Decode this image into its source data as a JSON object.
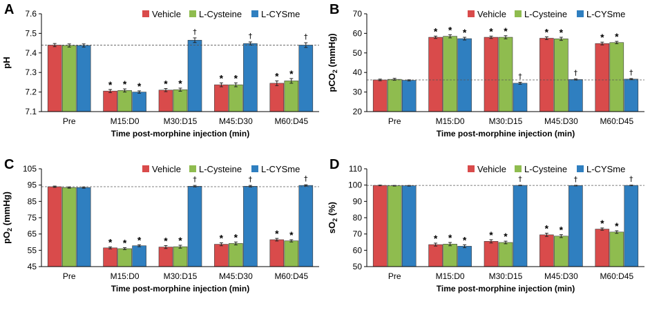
{
  "colors": {
    "Vehicle": "#d94b4b",
    "L-Cysteine": "#8fbc4f",
    "L-CYSme": "#2f7fc0",
    "axis": "#000000",
    "reference": "#555555"
  },
  "chart_data": [
    {
      "panel": "A",
      "type": "bar",
      "ylabel": "pH",
      "ylabel_sub": "",
      "ylabel_suffix": "",
      "xlabel": "Time post-morphine injection (min)",
      "categories": [
        "Pre",
        "M15:D0",
        "M30:D15",
        "M45:D30",
        "M60:D45"
      ],
      "ylim": [
        7.1,
        7.6
      ],
      "yticks": [
        7.1,
        7.2,
        7.3,
        7.4,
        7.5,
        7.6
      ],
      "ytick_labels": [
        "7.1",
        "7.2",
        "7.3",
        "7.4",
        "7.5",
        "7.6"
      ],
      "reference_line": 7.44,
      "series": [
        {
          "name": "Vehicle",
          "values": [
            7.44,
            7.205,
            7.21,
            7.237,
            7.245
          ],
          "errors": [
            0.008,
            0.008,
            0.008,
            0.01,
            0.012
          ],
          "marks": [
            "",
            "*",
            "*",
            "*",
            "*"
          ]
        },
        {
          "name": "L-Cysteine",
          "values": [
            7.438,
            7.208,
            7.212,
            7.237,
            7.257
          ],
          "errors": [
            0.008,
            0.008,
            0.008,
            0.01,
            0.012
          ],
          "marks": [
            "",
            "*",
            "*",
            "*",
            "*"
          ]
        },
        {
          "name": "L-CYSme",
          "values": [
            7.438,
            7.2,
            7.465,
            7.448,
            7.44
          ],
          "errors": [
            0.008,
            0.006,
            0.012,
            0.008,
            0.012
          ],
          "marks": [
            "",
            "*",
            "†",
            "†",
            "†"
          ]
        }
      ]
    },
    {
      "panel": "B",
      "type": "bar",
      "ylabel": "pCO",
      "ylabel_sub": "2",
      "ylabel_suffix": " (mmHg)",
      "xlabel": "Time post-morphine injection (min)",
      "categories": [
        "Pre",
        "M15:D0",
        "M30:D15",
        "M45:D30",
        "M60:D45"
      ],
      "ylim": [
        20,
        70
      ],
      "yticks": [
        20,
        30,
        40,
        50,
        60,
        70
      ],
      "ytick_labels": [
        "20",
        "30",
        "40",
        "50",
        "60",
        "70"
      ],
      "reference_line": 36.2,
      "series": [
        {
          "name": "Vehicle",
          "values": [
            36.2,
            58.0,
            58.0,
            57.5,
            54.8
          ],
          "errors": [
            0.4,
            0.6,
            0.6,
            0.7,
            0.7
          ],
          "marks": [
            "",
            "*",
            "*",
            "*",
            "*"
          ]
        },
        {
          "name": "L-Cysteine",
          "values": [
            36.5,
            58.5,
            58.0,
            57.2,
            55.3
          ],
          "errors": [
            0.5,
            0.8,
            0.8,
            0.8,
            0.6
          ],
          "marks": [
            "",
            "*",
            "*",
            "*",
            "*"
          ]
        },
        {
          "name": "L-CYSme",
          "values": [
            36.0,
            57.3,
            34.5,
            36.4,
            36.6
          ],
          "errors": [
            0.3,
            0.7,
            0.5,
            0.3,
            0.3
          ],
          "marks": [
            "",
            "*",
            "†",
            "†",
            "†"
          ]
        }
      ]
    },
    {
      "panel": "C",
      "type": "bar",
      "ylabel": "pO",
      "ylabel_sub": "2",
      "ylabel_suffix": " (mmHg)",
      "xlabel": "Time post-morphine injection (min)",
      "categories": [
        "Pre",
        "M15:D0",
        "M30:D15",
        "M45:D30",
        "M60:D45"
      ],
      "ylim": [
        45,
        105
      ],
      "yticks": [
        45,
        55,
        65,
        75,
        85,
        95,
        105
      ],
      "ytick_labels": [
        "45",
        "55",
        "65",
        "75",
        "85",
        "95",
        "105"
      ],
      "reference_line": 94,
      "series": [
        {
          "name": "Vehicle",
          "values": [
            94.0,
            56.5,
            57.0,
            58.7,
            61.5
          ],
          "errors": [
            0.4,
            0.6,
            0.9,
            0.9,
            0.8
          ],
          "marks": [
            "",
            "*",
            "*",
            "*",
            "*"
          ]
        },
        {
          "name": "L-Cysteine",
          "values": [
            93.5,
            56.0,
            57.2,
            59.2,
            60.8
          ],
          "errors": [
            0.4,
            0.6,
            0.9,
            0.9,
            0.7
          ],
          "marks": [
            "",
            "*",
            "*",
            "*",
            "*"
          ]
        },
        {
          "name": "L-CYSme",
          "values": [
            93.5,
            57.8,
            94.3,
            94.3,
            94.8
          ],
          "errors": [
            0.4,
            0.6,
            0.5,
            0.5,
            0.4
          ],
          "marks": [
            "",
            "*",
            "†",
            "†",
            "†"
          ]
        }
      ]
    },
    {
      "panel": "D",
      "type": "bar",
      "ylabel": "sO",
      "ylabel_sub": "2",
      "ylabel_suffix": " (%)",
      "xlabel": "Time post-morphine injection (min)",
      "categories": [
        "Pre",
        "M15:D0",
        "M30:D15",
        "M45:D30",
        "M60:D45"
      ],
      "ylim": [
        50,
        110
      ],
      "yticks": [
        50,
        60,
        70,
        80,
        90,
        100,
        110
      ],
      "ytick_labels": [
        "50",
        "60",
        "70",
        "80",
        "90",
        "100",
        "110"
      ],
      "reference_line": 99.8,
      "series": [
        {
          "name": "Vehicle",
          "values": [
            99.8,
            63.5,
            65.5,
            69.5,
            73.0
          ],
          "errors": [
            0.2,
            0.9,
            1.0,
            1.0,
            0.7
          ],
          "marks": [
            "",
            "*",
            "*",
            "*",
            "*"
          ]
        },
        {
          "name": "L-Cysteine",
          "values": [
            99.6,
            63.8,
            64.8,
            68.7,
            71.2
          ],
          "errors": [
            0.2,
            1.0,
            0.8,
            0.9,
            0.8
          ],
          "marks": [
            "",
            "*",
            "*",
            "*",
            "*"
          ]
        },
        {
          "name": "L-CYSme",
          "values": [
            99.6,
            62.5,
            99.8,
            99.7,
            99.8
          ],
          "errors": [
            0.2,
            0.9,
            0.2,
            0.2,
            0.2
          ],
          "marks": [
            "",
            "*",
            "†",
            "†",
            "†"
          ]
        }
      ]
    }
  ]
}
